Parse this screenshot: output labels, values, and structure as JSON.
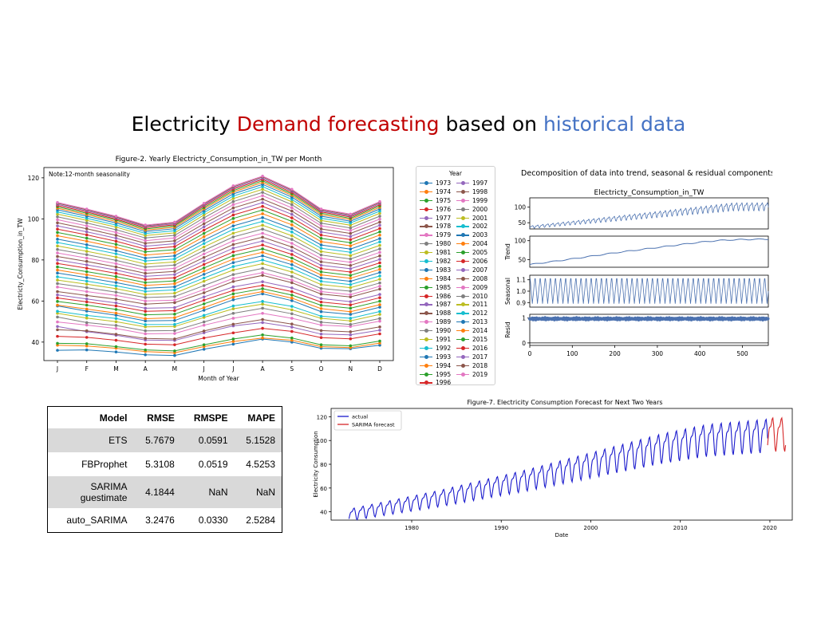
{
  "slide": {
    "title_parts": [
      "Electricity ",
      "Demand forecasting",
      " based on ",
      "historical data"
    ]
  },
  "colors": {
    "title_red": "#c00000",
    "title_blue": "#4472c4",
    "decomp_line": "#4c72b0",
    "actual": "#1a1acd",
    "forecast": "#d62728",
    "year_palette": [
      "#1f77b4",
      "#ff7f0e",
      "#2ca02c",
      "#d62728",
      "#9467bd",
      "#8c564b",
      "#e377c2",
      "#7f7f7f",
      "#bcbd22",
      "#17becf"
    ]
  },
  "chart_data": [
    {
      "id": "monthly",
      "type": "line",
      "title": "Figure-2. Yearly Electricty_Consumption_in_TW per Month",
      "xlabel": "Month of Year",
      "ylabel": "Electricty_Consumption_in_TW",
      "annotation": "Note:12-month seasonality",
      "legend_title": "Year",
      "legend_position": "outside-right",
      "categories": [
        "J",
        "F",
        "M",
        "A",
        "M",
        "J",
        "J",
        "A",
        "S",
        "O",
        "N",
        "D"
      ],
      "ylim": [
        31,
        125
      ],
      "yticks": [
        40,
        60,
        80,
        100,
        120
      ],
      "markers": true,
      "series": [
        {
          "name": "1973",
          "values": [
            36.0,
            36.2,
            35.2,
            33.8,
            33.5,
            36.5,
            39.0,
            41.5,
            40.0,
            37.0,
            36.8,
            38.5
          ]
        },
        {
          "name": "1974",
          "values": [
            38.5,
            38.1,
            37.0,
            35.4,
            34.8,
            37.8,
            40.3,
            42.0,
            40.9,
            37.8,
            37.3,
            39.5
          ]
        },
        {
          "name": "1975",
          "values": [
            39.4,
            39.2,
            37.8,
            36.2,
            35.7,
            38.7,
            41.5,
            43.5,
            42.0,
            38.7,
            38.2,
            40.5
          ]
        },
        {
          "name": "1976",
          "values": [
            42.8,
            42.3,
            40.9,
            39.0,
            38.7,
            42.0,
            44.5,
            46.7,
            45.2,
            42.2,
            41.6,
            44.0
          ]
        },
        {
          "name": "1977",
          "values": [
            47.6,
            45.1,
            43.3,
            41.0,
            40.8,
            44.5,
            47.9,
            49.5,
            47.3,
            43.9,
            43.5,
            45.8
          ]
        },
        {
          "name": "1978",
          "values": [
            46.0,
            45.5,
            43.8,
            41.8,
            41.5,
            45.4,
            48.7,
            51.0,
            48.8,
            45.6,
            45.0,
            47.4
          ]
        },
        {
          "name": "1979",
          "values": [
            49.8,
            48.3,
            46.6,
            44.0,
            44.2,
            48.2,
            51.6,
            54.0,
            51.6,
            48.3,
            47.6,
            50.2
          ]
        },
        {
          "name": "1980",
          "values": [
            52.2,
            49.5,
            48.1,
            45.5,
            45.6,
            49.8,
            54.0,
            56.5,
            53.8,
            49.7,
            48.6,
            51.5
          ]
        },
        {
          "name": "1981",
          "values": [
            54.0,
            51.7,
            49.9,
            47.4,
            47.6,
            52.0,
            56.2,
            58.5,
            55.7,
            51.6,
            50.3,
            53.5
          ]
        },
        {
          "name": "1982",
          "values": [
            55.0,
            53.0,
            51.5,
            48.5,
            48.6,
            53.0,
            57.6,
            59.8,
            57.4,
            52.6,
            51.6,
            54.9
          ]
        },
        {
          "name": "1983",
          "values": [
            57.6,
            55.1,
            53.1,
            50.3,
            50.5,
            55.5,
            60.6,
            63.5,
            60.2,
            54.8,
            53.5,
            57.0
          ]
        },
        {
          "name": "1984",
          "values": [
            58.0,
            56.1,
            54.1,
            51.4,
            51.9,
            56.8,
            61.9,
            64.6,
            61.4,
            56.3,
            54.8,
            58.2
          ]
        },
        {
          "name": "1985",
          "values": [
            59.8,
            58.0,
            55.9,
            53.3,
            53.6,
            58.6,
            63.5,
            66.0,
            62.9,
            57.9,
            56.5,
            59.9
          ]
        },
        {
          "name": "1986",
          "values": [
            61.5,
            59.6,
            57.6,
            55.0,
            55.3,
            60.4,
            65.2,
            67.6,
            64.6,
            59.5,
            58.1,
            61.6
          ]
        },
        {
          "name": "1987",
          "values": [
            63.0,
            61.0,
            59.1,
            56.5,
            56.8,
            62.0,
            66.9,
            69.4,
            66.4,
            61.2,
            59.7,
            63.2
          ]
        },
        {
          "name": "1988",
          "values": [
            64.6,
            62.7,
            60.9,
            58.5,
            59.2,
            64.0,
            69.5,
            72.5,
            68.9,
            63.4,
            62.0,
            65.8
          ]
        },
        {
          "name": "1989",
          "values": [
            66.8,
            64.6,
            62.7,
            60.0,
            60.4,
            65.6,
            71.0,
            73.8,
            70.2,
            64.6,
            63.1,
            67.2
          ]
        },
        {
          "name": "1990",
          "values": [
            68.5,
            66.5,
            64.3,
            61.7,
            62.2,
            67.5,
            72.9,
            75.9,
            72.0,
            66.1,
            64.8,
            68.8
          ]
        },
        {
          "name": "1991",
          "values": [
            70.2,
            68.2,
            66.0,
            63.2,
            63.8,
            69.6,
            75.1,
            78.2,
            74.1,
            68.0,
            66.5,
            70.6
          ]
        },
        {
          "name": "1992",
          "values": [
            71.8,
            69.7,
            67.4,
            64.7,
            65.4,
            71.2,
            76.8,
            80.0,
            75.9,
            69.6,
            68.0,
            72.2
          ]
        },
        {
          "name": "1993",
          "values": [
            73.6,
            71.4,
            69.0,
            66.2,
            66.9,
            73.0,
            78.7,
            82.0,
            77.7,
            71.2,
            69.6,
            73.9
          ]
        },
        {
          "name": "1994",
          "values": [
            75.1,
            72.8,
            70.5,
            67.6,
            68.4,
            74.6,
            80.4,
            83.7,
            79.3,
            72.7,
            71.1,
            75.4
          ]
        },
        {
          "name": "1995",
          "values": [
            76.6,
            74.3,
            71.9,
            69.0,
            69.8,
            76.1,
            82.1,
            85.4,
            80.9,
            74.2,
            72.5,
            76.9
          ]
        },
        {
          "name": "1996",
          "values": [
            78.3,
            76.0,
            73.5,
            70.5,
            71.3,
            77.8,
            83.9,
            87.3,
            82.7,
            75.8,
            74.1,
            78.6
          ]
        },
        {
          "name": "1997",
          "values": [
            80.0,
            77.6,
            75.1,
            72.0,
            72.9,
            79.5,
            85.7,
            89.2,
            84.5,
            77.4,
            75.7,
            80.3
          ]
        },
        {
          "name": "1998",
          "values": [
            81.7,
            79.3,
            76.6,
            73.5,
            74.4,
            81.2,
            87.5,
            91.1,
            86.3,
            79.1,
            77.3,
            82.0
          ]
        },
        {
          "name": "1999",
          "values": [
            83.4,
            80.9,
            78.2,
            75.0,
            75.9,
            82.9,
            89.3,
            93.0,
            88.1,
            80.7,
            78.9,
            83.7
          ]
        },
        {
          "name": "2000",
          "values": [
            85.1,
            82.6,
            79.8,
            76.5,
            77.5,
            84.6,
            91.2,
            95.0,
            90.0,
            82.4,
            80.5,
            85.4
          ]
        },
        {
          "name": "2001",
          "values": [
            86.8,
            84.2,
            81.4,
            78.0,
            79.0,
            86.3,
            93.0,
            96.9,
            91.8,
            84.1,
            82.1,
            87.1
          ]
        },
        {
          "name": "2002",
          "values": [
            88.5,
            85.9,
            83.0,
            79.5,
            80.5,
            88.0,
            94.9,
            98.8,
            93.6,
            85.7,
            83.7,
            88.8
          ]
        },
        {
          "name": "2003",
          "values": [
            90.1,
            87.4,
            84.5,
            80.9,
            82.0,
            89.6,
            96.6,
            100.6,
            95.3,
            87.3,
            85.3,
            90.4
          ]
        },
        {
          "name": "2004",
          "values": [
            91.8,
            89.1,
            86.1,
            82.4,
            83.5,
            91.3,
            98.4,
            102.5,
            97.1,
            88.9,
            86.9,
            92.1
          ]
        },
        {
          "name": "2005",
          "values": [
            93.4,
            90.6,
            87.6,
            83.9,
            85.0,
            92.9,
            100.2,
            104.3,
            98.8,
            90.5,
            88.4,
            93.7
          ]
        },
        {
          "name": "2006",
          "values": [
            95.0,
            92.2,
            89.1,
            85.3,
            86.5,
            94.5,
            101.9,
            106.1,
            100.5,
            92.1,
            89.9,
            95.3
          ]
        },
        {
          "name": "2007",
          "values": [
            96.6,
            93.7,
            90.6,
            86.7,
            87.9,
            96.1,
            103.6,
            107.9,
            102.2,
            93.6,
            91.4,
            96.9
          ]
        },
        {
          "name": "2008",
          "values": [
            98.1,
            95.2,
            92.0,
            88.1,
            89.3,
            97.6,
            105.3,
            109.6,
            103.8,
            95.1,
            92.9,
            98.4
          ]
        },
        {
          "name": "2009",
          "values": [
            99.6,
            96.6,
            93.4,
            89.4,
            90.7,
            99.1,
            106.9,
            111.3,
            105.4,
            96.6,
            94.3,
            99.9
          ]
        },
        {
          "name": "2010",
          "values": [
            101.0,
            98.0,
            94.7,
            90.7,
            92.0,
            100.5,
            108.4,
            112.9,
            106.9,
            97.9,
            95.6,
            101.3
          ]
        },
        {
          "name": "2011",
          "values": [
            102.3,
            99.3,
            96.0,
            91.9,
            93.2,
            101.9,
            109.9,
            114.4,
            108.3,
            99.2,
            96.9,
            102.7
          ]
        },
        {
          "name": "2012",
          "values": [
            103.4,
            100.3,
            97.0,
            92.9,
            94.2,
            103.0,
            111.1,
            115.7,
            109.5,
            100.3,
            98.0,
            103.8
          ]
        },
        {
          "name": "2013",
          "values": [
            104.4,
            101.3,
            98.0,
            93.8,
            95.2,
            104.0,
            112.2,
            116.8,
            110.6,
            101.3,
            98.9,
            104.8
          ]
        },
        {
          "name": "2014",
          "values": [
            105.2,
            102.1,
            98.7,
            94.5,
            95.9,
            104.8,
            113.1,
            117.7,
            111.5,
            102.1,
            99.7,
            105.6
          ]
        },
        {
          "name": "2015",
          "values": [
            105.9,
            102.8,
            99.4,
            95.1,
            96.6,
            105.5,
            113.8,
            118.5,
            112.2,
            102.8,
            100.3,
            106.3
          ]
        },
        {
          "name": "2016",
          "values": [
            106.5,
            103.4,
            99.9,
            95.7,
            97.1,
            106.2,
            114.5,
            119.2,
            112.9,
            103.4,
            100.9,
            106.9
          ]
        },
        {
          "name": "2017",
          "values": [
            107.1,
            103.9,
            100.5,
            96.2,
            97.6,
            106.7,
            115.1,
            119.8,
            113.5,
            103.9,
            101.4,
            107.5
          ]
        },
        {
          "name": "2018",
          "values": [
            107.6,
            104.4,
            100.9,
            96.6,
            98.1,
            107.2,
            115.6,
            120.4,
            114.0,
            104.4,
            101.9,
            108.0
          ]
        },
        {
          "name": "2019",
          "values": [
            108.0,
            104.8,
            101.3,
            97.0,
            98.4,
            107.6,
            116.1,
            120.8,
            114.4,
            104.8,
            102.3,
            108.4
          ]
        }
      ]
    },
    {
      "id": "decomposition",
      "type": "line",
      "title": "Decomposition of data into trend, seasonal & residual components",
      "panel_title": "Electricty_Consumption_in_TW",
      "xlim": [
        0,
        561
      ],
      "xticks": [
        0,
        100,
        200,
        300,
        400,
        500
      ],
      "panels": [
        {
          "ylabel": "",
          "yticks": [
            "100",
            "50"
          ],
          "ylim": [
            30,
            130
          ],
          "series": {
            "type": "monthly-seasonal",
            "trend_start": 36,
            "trend_end": 103,
            "amplitude": 0.1
          }
        },
        {
          "ylabel": "Trend",
          "yticks": [
            "100",
            "50"
          ],
          "ylim": [
            30,
            112
          ],
          "trend": {
            "x": [
              0,
              100,
              200,
              300,
              400,
              450,
              500,
              561
            ],
            "y": [
              37,
              52,
              68,
              82,
              96,
              101,
              103,
              104
            ]
          }
        },
        {
          "ylabel": "Seasonal",
          "yticks": [
            "1.1",
            "1.0",
            "0.9"
          ],
          "ylim": [
            0.86,
            1.14
          ],
          "series": {
            "type": "cycle",
            "period": 12,
            "min": 0.89,
            "max": 1.11
          }
        },
        {
          "ylabel": "Resid",
          "yticks": [
            "1",
            "0"
          ],
          "ylim": [
            -0.1,
            1.15
          ],
          "series": {
            "type": "scatter-band",
            "center": 0.97,
            "spread": 0.04
          }
        }
      ]
    },
    {
      "id": "forecast",
      "type": "line",
      "title": "Figure-7. Electricity Consumption Forecast for Next Two Years",
      "xlabel": "Date",
      "ylabel": "Electricity Consumption",
      "legend_position": "top-left",
      "xlim": [
        1971.0,
        2022.5
      ],
      "ylim": [
        33,
        127
      ],
      "xticks": [
        1980,
        1990,
        2000,
        2010,
        2020
      ],
      "yticks": [
        40,
        60,
        80,
        100,
        120
      ],
      "series": [
        {
          "name": "actual",
          "x_range": [
            1973.0,
            2019.75
          ],
          "trend": {
            "x": [
              1973,
              1978,
              1983,
              1988,
              1993,
              1998,
              2003,
              2008,
              2013,
              2019.75
            ],
            "y": [
              38,
              45,
              52,
              60,
              68,
              77,
              86,
              95,
              102,
              106
            ]
          },
          "seasonal_amplitude": 0.11
        },
        {
          "name": "SARIMA forecast",
          "x_range": [
            2019.75,
            2021.75
          ],
          "level": 107,
          "seasonal_amplitude": 0.11
        }
      ]
    }
  ],
  "metrics_table": {
    "headers": [
      "Model",
      "RMSE",
      "RMSPE",
      "MAPE"
    ],
    "rows": [
      [
        "ETS",
        "5.7679",
        "0.0591",
        "5.1528"
      ],
      [
        "FBProphet",
        "5.3108",
        "0.0519",
        "4.5253"
      ],
      [
        "SARIMA\nguestimate",
        "4.1844",
        "NaN",
        "NaN"
      ],
      [
        "auto_SARIMA",
        "3.2476",
        "0.0330",
        "2.5284"
      ]
    ]
  }
}
